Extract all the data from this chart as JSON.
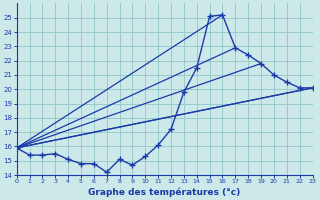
{
  "xlabel": "Graphe des températures (°c)",
  "bg_color": "#cce8e8",
  "grid_color": "#99cccc",
  "line_color": "#1a3aaa",
  "hours": [
    0,
    1,
    2,
    3,
    4,
    5,
    6,
    7,
    8,
    9,
    10,
    11,
    12,
    13,
    14,
    15,
    16,
    17,
    18,
    19,
    20,
    21,
    22,
    23
  ],
  "main_curve": [
    15.9,
    15.4,
    15.4,
    15.5,
    15.1,
    14.8,
    14.8,
    14.2,
    15.1,
    14.7,
    15.3,
    16.1,
    17.2,
    19.8,
    21.5,
    25.1,
    25.2,
    22.9,
    22.4,
    21.8,
    21.0,
    20.5,
    20.1,
    20.1
  ],
  "straight_lines": [
    [
      0,
      15.9,
      23,
      20.1
    ],
    [
      0,
      15.9,
      23,
      20.1
    ],
    [
      0,
      15.9,
      19,
      21.8
    ],
    [
      0,
      15.9,
      17,
      22.9
    ],
    [
      0,
      15.9,
      16,
      25.2
    ]
  ],
  "ylim": [
    14.0,
    26.0
  ],
  "yticks": [
    14,
    15,
    16,
    17,
    18,
    19,
    20,
    21,
    22,
    23,
    24,
    25
  ],
  "xlim": [
    0,
    23
  ],
  "figsize": [
    3.2,
    2.0
  ],
  "dpi": 100
}
